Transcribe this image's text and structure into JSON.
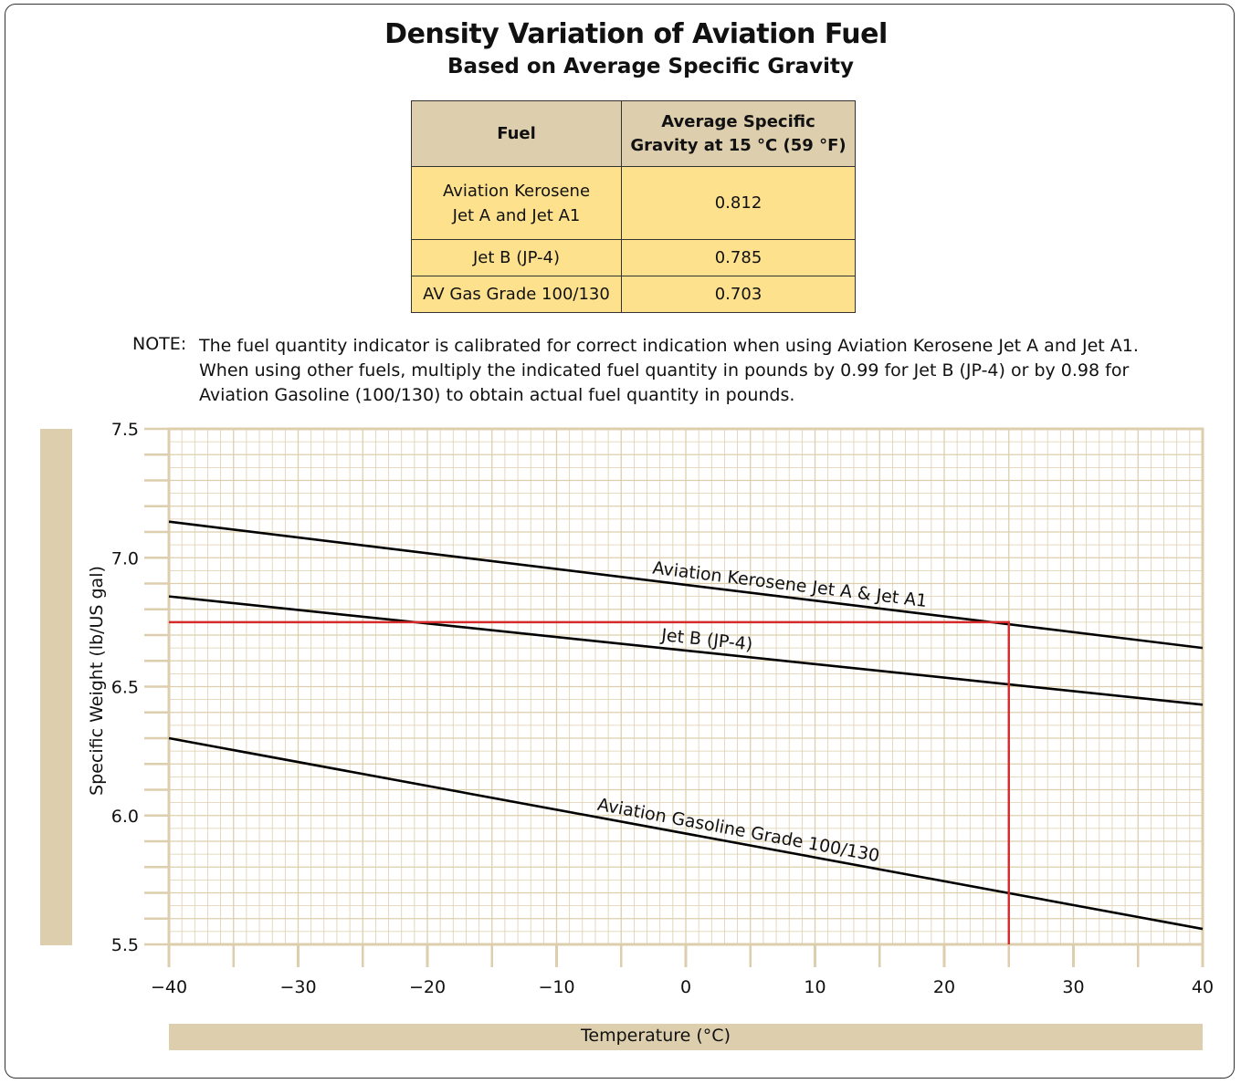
{
  "title": "Density Variation of Aviation Fuel",
  "subtitle": "Based on Average Specific Gravity",
  "table": {
    "headers": [
      "Fuel",
      "Average Specific",
      "Gravity at 15 °C (59 °F)"
    ],
    "rows": [
      {
        "fuel_line1": "Aviation Kerosene",
        "fuel_line2": "Jet A and Jet A1",
        "sg": "0.812"
      },
      {
        "fuel_line1": "Jet B (JP-4)",
        "fuel_line2": "",
        "sg": "0.785"
      },
      {
        "fuel_line1": "AV Gas Grade 100/130",
        "fuel_line2": "",
        "sg": "0.703"
      }
    ]
  },
  "note": {
    "label": "NOTE:",
    "lines": [
      "The fuel quantity indicator is calibrated for correct indication when using Aviation Kerosene Jet A and Jet A1.",
      "When using other fuels, multiply the indicated fuel quantity in pounds by 0.99 for Jet B (JP-4) or by 0.98 for",
      "Aviation Gasoline (100/130) to obtain actual fuel quantity in pounds."
    ]
  },
  "colors": {
    "grid": "#ddcfae",
    "label_bar": "#ddcfae",
    "header_bg": "#ddcfae",
    "cell_bg": "#fde18d",
    "example_line": "#d42a2a",
    "series_line": "#000000"
  },
  "chart_data": {
    "type": "line",
    "xlabel": "Temperature (°C)",
    "ylabel": "Specific Weight (lb/US gal)",
    "xlim": [
      -40,
      40
    ],
    "ylim": [
      5.5,
      7.5
    ],
    "x_ticks": [
      -40,
      -30,
      -20,
      -10,
      0,
      10,
      20,
      30,
      40
    ],
    "x_tick_labels": [
      "−40",
      "−30",
      "−20",
      "−10",
      "0",
      "10",
      "20",
      "30",
      "40"
    ],
    "y_ticks": [
      5.5,
      6.0,
      6.5,
      7.0,
      7.5
    ],
    "y_tick_labels": [
      "5.5",
      "6.0",
      "6.5",
      "7.0",
      "7.5"
    ],
    "grid": true,
    "series": [
      {
        "name": "Aviation Kerosene Jet A & Jet A1",
        "x": [
          -40,
          40
        ],
        "y": [
          7.14,
          6.65
        ]
      },
      {
        "name": "Jet B (JP-4)",
        "x": [
          -40,
          40
        ],
        "y": [
          6.85,
          6.43
        ]
      },
      {
        "name": "Aviation Gasoline Grade 100/130",
        "x": [
          -40,
          40
        ],
        "y": [
          6.3,
          5.56
        ]
      }
    ],
    "example_guide": {
      "temperature": 25,
      "specific_weight": 6.75
    }
  }
}
